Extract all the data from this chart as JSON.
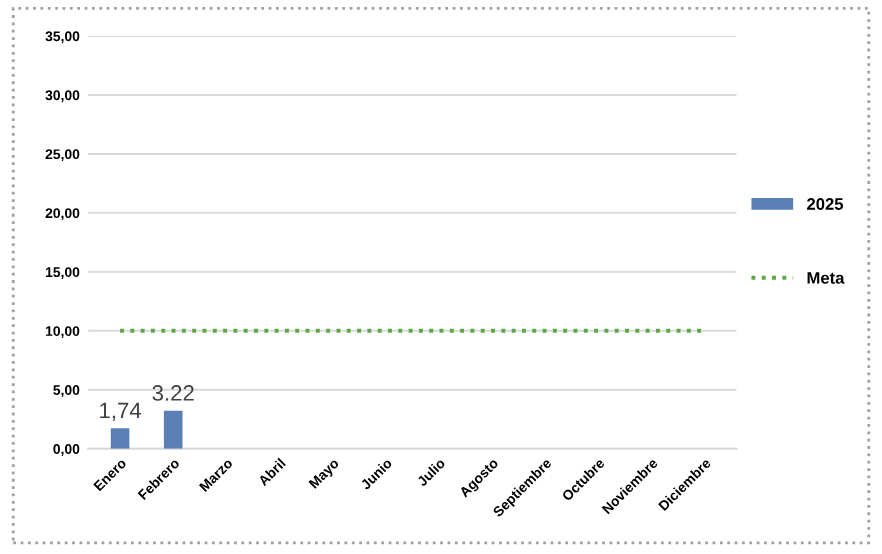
{
  "chart_data": {
    "type": "bar",
    "categories": [
      "Enero",
      "Febrero",
      "Marzo",
      "Abril",
      "Mayo",
      "Junio",
      "Julio",
      "Agosto",
      "Septiembre",
      "Octubre",
      "Noviembre",
      "Diciembre"
    ],
    "series": [
      {
        "name": "2025",
        "color": "#5b7fb5",
        "values": [
          1.74,
          3.22,
          null,
          null,
          null,
          null,
          null,
          null,
          null,
          null,
          null,
          null
        ],
        "value_labels": [
          "1,74",
          "3.22",
          null,
          null,
          null,
          null,
          null,
          null,
          null,
          null,
          null,
          null
        ]
      },
      {
        "name": "Meta",
        "type": "line",
        "color": "#5aa846",
        "line_style": "dotted",
        "values": [
          10,
          10,
          10,
          10,
          10,
          10,
          10,
          10,
          10,
          10,
          10,
          10
        ]
      }
    ],
    "ylim": [
      0,
      35
    ],
    "yticks": [
      {
        "value": 0,
        "label": "0,00"
      },
      {
        "value": 5,
        "label": "5,00"
      },
      {
        "value": 10,
        "label": "10,00"
      },
      {
        "value": 15,
        "label": "15,00"
      },
      {
        "value": 20,
        "label": "20,00"
      },
      {
        "value": 25,
        "label": "25,00"
      },
      {
        "value": 30,
        "label": "30,00"
      },
      {
        "value": 35,
        "label": "35,00"
      }
    ],
    "grid": "y",
    "legend": "right"
  }
}
